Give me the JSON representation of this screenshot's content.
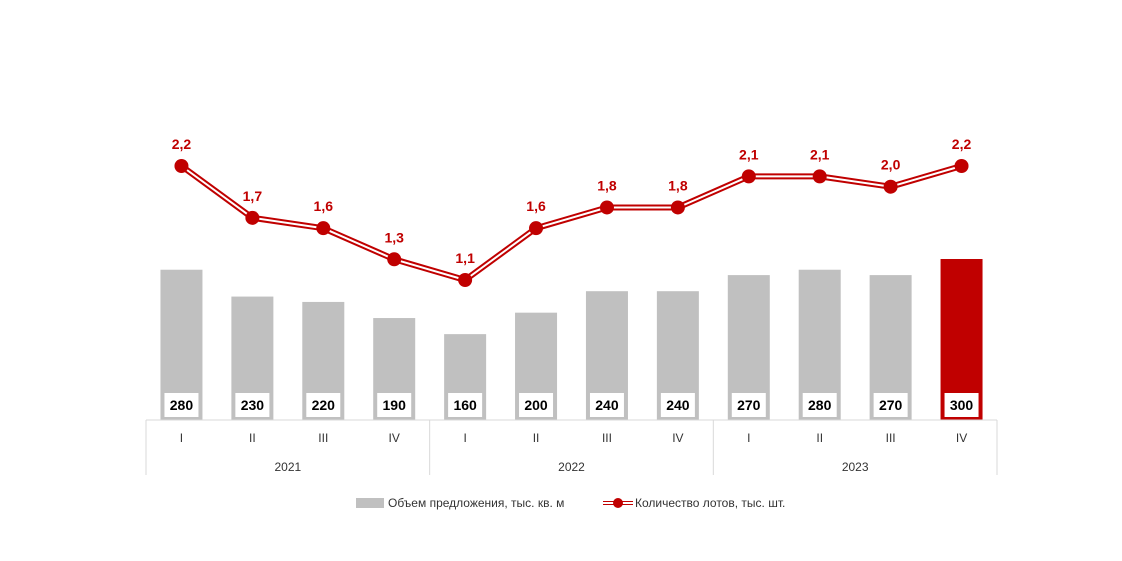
{
  "chart_data": {
    "type": "bar",
    "categories": [
      "I",
      "II",
      "III",
      "IV",
      "I",
      "II",
      "III",
      "IV",
      "I",
      "II",
      "III",
      "IV"
    ],
    "groups": [
      {
        "label": "2021",
        "count": 4
      },
      {
        "label": "2022",
        "count": 4
      },
      {
        "label": "2023",
        "count": 4
      }
    ],
    "series": [
      {
        "name": "Объем предложения, тыс. кв. м",
        "type": "bar",
        "values": [
          280,
          230,
          220,
          190,
          160,
          200,
          240,
          240,
          270,
          280,
          270,
          300
        ],
        "labels": [
          "280",
          "230",
          "220",
          "190",
          "160",
          "200",
          "240",
          "240",
          "270",
          "280",
          "270",
          "300"
        ],
        "color": "#c0c0c0",
        "highlight_color": "#c00000",
        "highlight_index": 11
      },
      {
        "name": "Количество лотов, тыс. шт.",
        "type": "line",
        "values": [
          2.2,
          1.7,
          1.6,
          1.3,
          1.1,
          1.6,
          1.8,
          1.8,
          2.1,
          2.1,
          2.0,
          2.2
        ],
        "labels": [
          "2,2",
          "1,7",
          "1,6",
          "1,3",
          "1,1",
          "1,6",
          "1,8",
          "1,8",
          "2,1",
          "2,1",
          "2,0",
          "2,2"
        ],
        "color": "#c00000"
      }
    ],
    "legend_position": "bottom",
    "grid": false
  },
  "legend": {
    "bar_label": "Объем предложения, тыс. кв. м",
    "line_label": "Количество лотов, тыс. шт."
  }
}
